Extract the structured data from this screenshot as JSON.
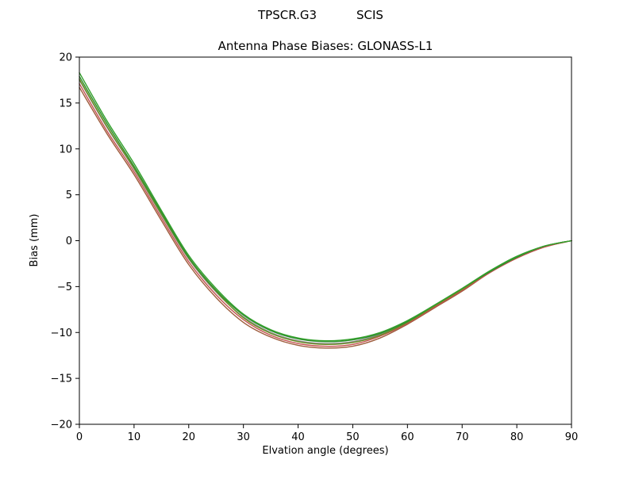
{
  "chart_data": {
    "type": "line",
    "suptitle_left": "TPSCR.G3",
    "suptitle_right": "SCIS",
    "title": "Antenna Phase Biases: GLONASS-L1",
    "xlabel": "Elvation angle (degrees)",
    "ylabel": "Bias (mm)",
    "xlim": [
      0,
      90
    ],
    "ylim": [
      -20,
      20
    ],
    "xticks": [
      0,
      10,
      20,
      30,
      40,
      50,
      60,
      70,
      80,
      90
    ],
    "yticks": [
      -20,
      -15,
      -10,
      -5,
      0,
      5,
      10,
      15,
      20
    ],
    "grid": false,
    "legend": "none",
    "x": [
      0,
      5,
      10,
      15,
      20,
      25,
      30,
      35,
      40,
      45,
      50,
      55,
      60,
      65,
      70,
      75,
      80,
      85,
      90
    ],
    "series": [
      {
        "name": "line-1",
        "color": "#8a8a8a",
        "values": [
          17.5,
          12.4,
          7.8,
          2.8,
          -2.0,
          -5.6,
          -8.3,
          -10.0,
          -10.9,
          -11.2,
          -11.0,
          -10.2,
          -8.9,
          -7.1,
          -5.3,
          -3.4,
          -1.8,
          -0.6,
          0.0
        ]
      },
      {
        "name": "line-2",
        "color": "#9e5c3c",
        "values": [
          16.7,
          11.7,
          7.2,
          2.2,
          -2.6,
          -6.2,
          -8.9,
          -10.5,
          -11.4,
          -11.7,
          -11.5,
          -10.6,
          -9.1,
          -7.3,
          -5.5,
          -3.5,
          -1.9,
          -0.7,
          0.0
        ]
      },
      {
        "name": "line-3",
        "color": "#c45050",
        "values": [
          17.1,
          12.0,
          7.5,
          2.5,
          -2.3,
          -5.9,
          -8.6,
          -10.3,
          -11.2,
          -11.5,
          -11.3,
          -10.4,
          -9.0,
          -7.2,
          -5.4,
          -3.5,
          -1.9,
          -0.7,
          0.0
        ]
      },
      {
        "name": "line-4",
        "color": "#6b8e23",
        "values": [
          17.6,
          12.5,
          7.9,
          2.9,
          -1.9,
          -5.5,
          -8.4,
          -10.1,
          -11.0,
          -11.3,
          -11.1,
          -10.3,
          -8.9,
          -7.1,
          -5.3,
          -3.4,
          -1.8,
          -0.6,
          0.0
        ]
      },
      {
        "name": "line-5",
        "color": "#2d8f2d",
        "values": [
          17.9,
          12.8,
          8.1,
          3.1,
          -1.8,
          -5.4,
          -8.1,
          -9.8,
          -10.7,
          -11.0,
          -10.8,
          -10.1,
          -8.8,
          -7.0,
          -5.2,
          -3.4,
          -1.8,
          -0.6,
          0.0
        ]
      },
      {
        "name": "line-6",
        "color": "#33a02c",
        "values": [
          18.3,
          13.1,
          8.4,
          3.3,
          -1.6,
          -5.2,
          -8.0,
          -9.7,
          -10.6,
          -10.9,
          -10.7,
          -10.0,
          -8.7,
          -7.0,
          -5.2,
          -3.3,
          -1.7,
          -0.6,
          0.0
        ]
      }
    ]
  }
}
